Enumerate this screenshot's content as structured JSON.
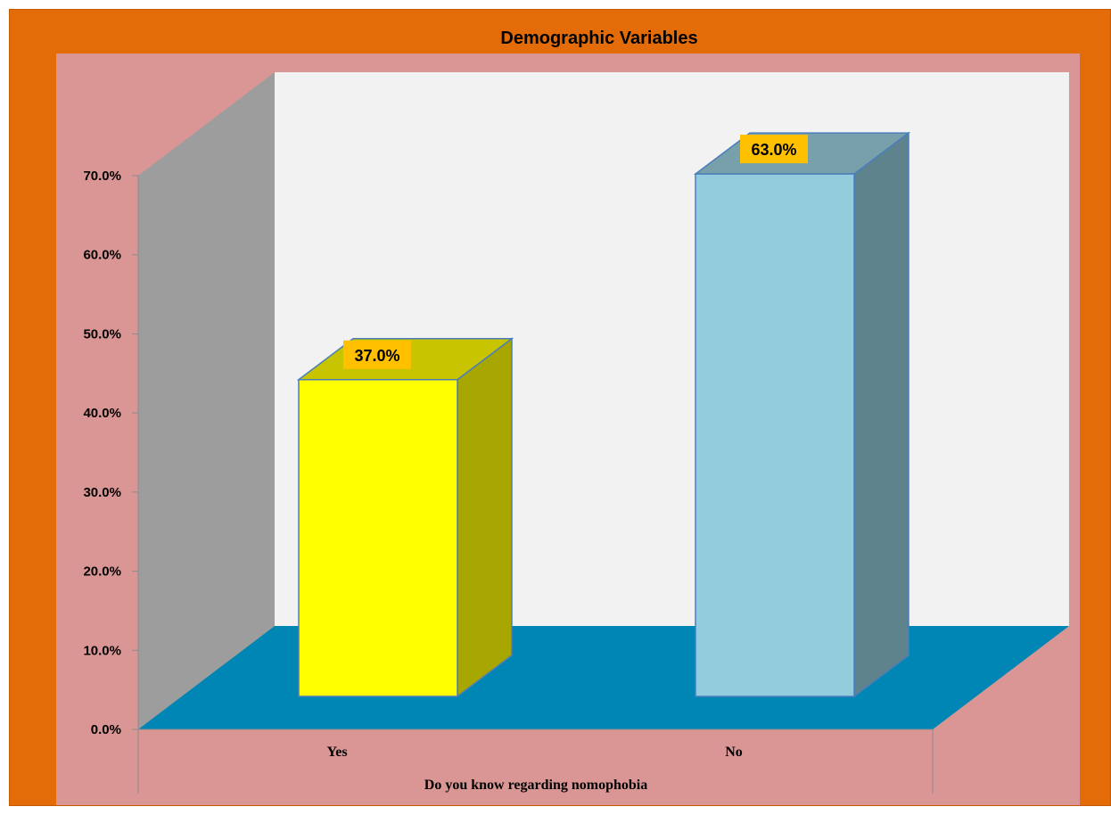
{
  "chart_data": {
    "type": "bar",
    "title": "Demographic Variables",
    "xlabel": "Do you know regarding nomophobia",
    "ylabel": "",
    "categories": [
      "Yes",
      "No"
    ],
    "values": [
      37.0,
      63.0
    ],
    "value_labels": [
      "37.0%",
      "63.0%"
    ],
    "ylim": [
      0,
      70
    ],
    "yticks": [
      0,
      10,
      20,
      30,
      40,
      50,
      60,
      70
    ],
    "ytick_labels": [
      "0.0%",
      "10.0%",
      "20.0%",
      "30.0%",
      "40.0%",
      "50.0%",
      "60.0%",
      "70.0%"
    ],
    "legend": "none",
    "grid": false,
    "style": "3d-column",
    "colors": {
      "frame": "#e36c09",
      "plot_area": "#d99694",
      "back_wall": "#f2f2f2",
      "side_wall": "#9d9d9d",
      "floor": "#0086b4",
      "bar_yes": "#ffff00",
      "bar_no": "#93cddd",
      "label_box": "#ffc000"
    }
  }
}
